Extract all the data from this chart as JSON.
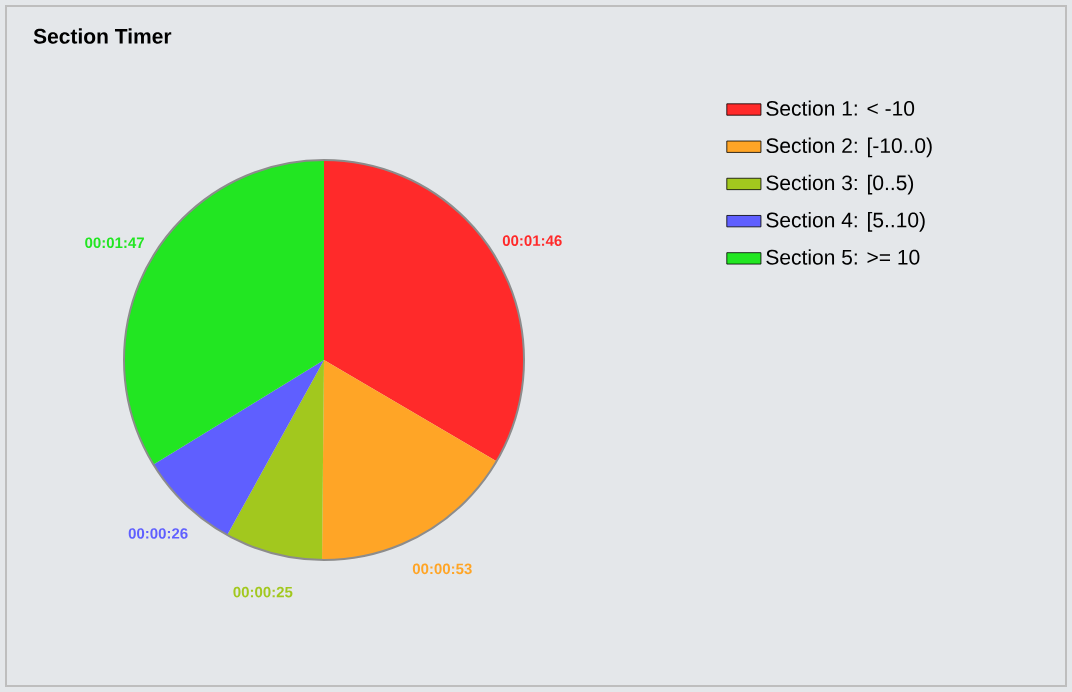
{
  "chart_data": {
    "type": "pie",
    "title": "Section Timer",
    "categories": [
      "Section 1: < -10",
      "Section 2: [-10..0)",
      "Section 3: [0..5)",
      "Section 4: [5..10)",
      "Section 5: >= 10"
    ],
    "values": [
      106,
      53,
      25,
      26,
      107
    ],
    "value_labels": [
      "00:01:46",
      "00:00:53",
      "00:00:25",
      "00:00:26",
      "00:01:47"
    ],
    "colors": [
      "#ff2a2a",
      "#ffa526",
      "#a2c81e",
      "#5f5fff",
      "#22e622"
    ],
    "legend": "right"
  }
}
